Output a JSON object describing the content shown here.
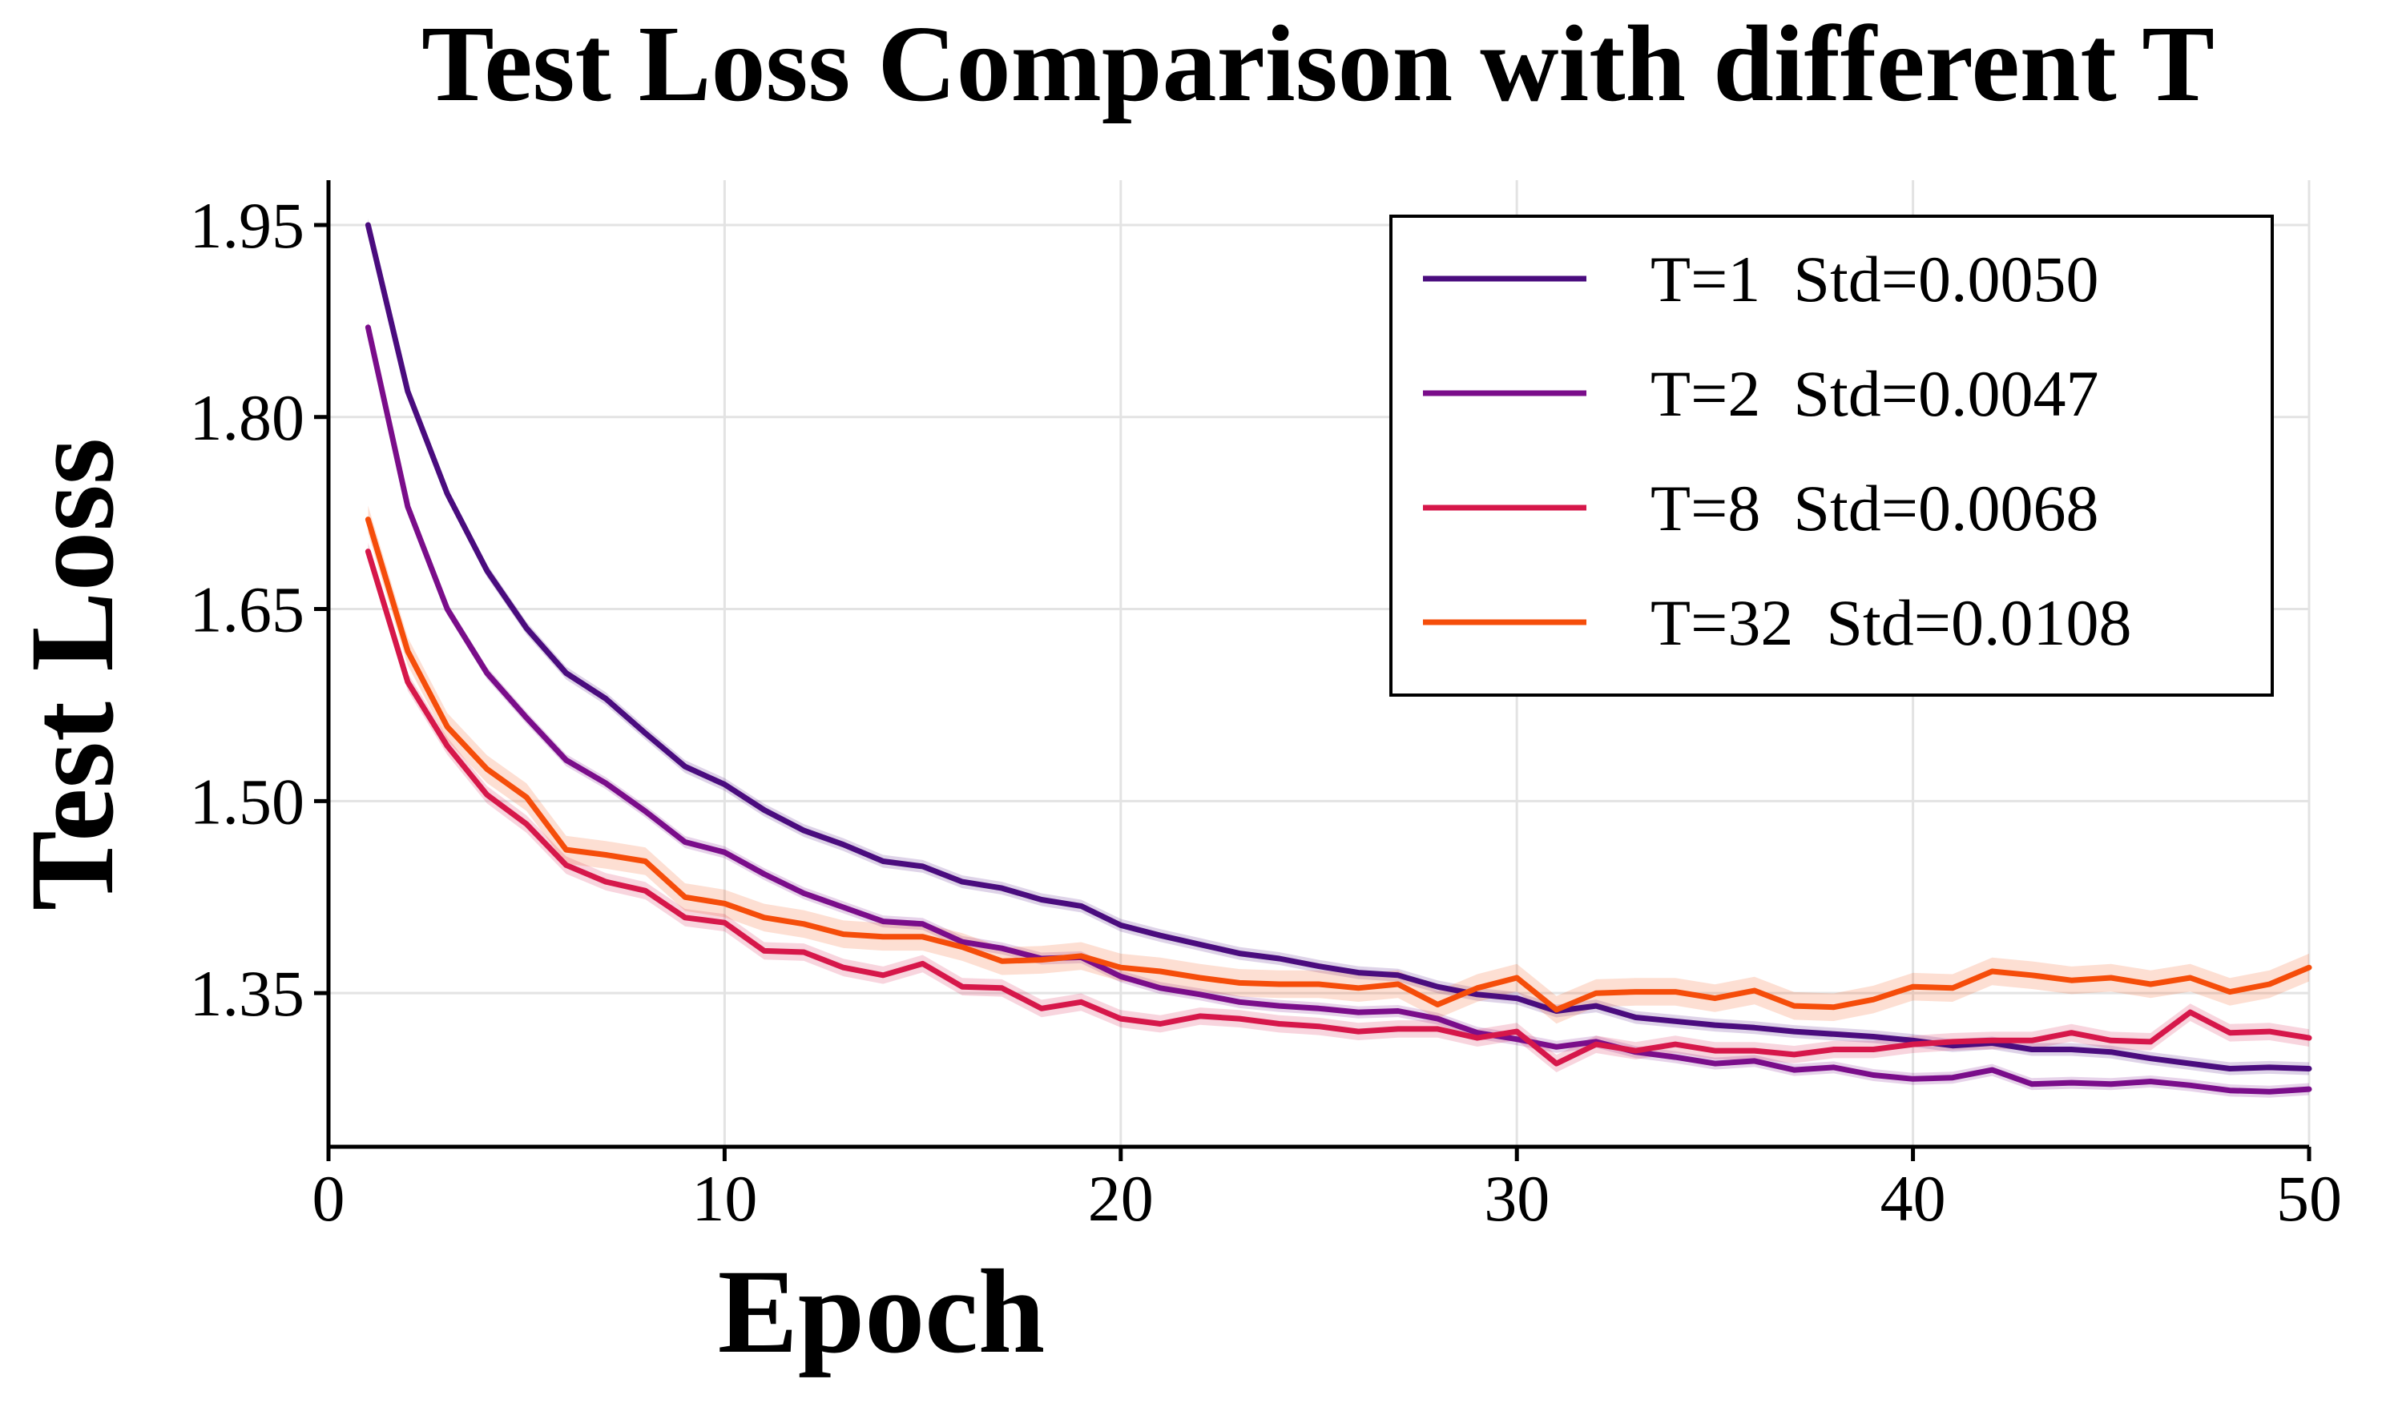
{
  "chart_data": {
    "type": "line",
    "title": "Test Loss Comparison with different T",
    "xlabel": "Epoch",
    "ylabel": "Test Loss",
    "xlim": [
      0,
      50
    ],
    "ylim": [
      1.23,
      1.985
    ],
    "xticks": [
      0,
      10,
      20,
      30,
      40,
      50
    ],
    "xtick_labels": [
      "0",
      "10",
      "20",
      "30",
      "40",
      "50"
    ],
    "yticks": [
      1.35,
      1.5,
      1.65,
      1.8,
      1.95
    ],
    "ytick_labels": [
      "1.35",
      "1.50",
      "1.65",
      "1.80",
      "1.95"
    ],
    "grid": true,
    "legend_position": "top-right",
    "x": [
      1,
      2,
      3,
      4,
      5,
      6,
      7,
      8,
      9,
      10,
      11,
      12,
      13,
      14,
      15,
      16,
      17,
      18,
      19,
      20,
      21,
      22,
      23,
      24,
      25,
      26,
      27,
      28,
      29,
      30,
      31,
      32,
      33,
      34,
      35,
      36,
      37,
      38,
      39,
      40,
      41,
      42,
      43,
      44,
      45,
      46,
      47,
      48,
      49,
      50
    ],
    "series": [
      {
        "name": "T=1  Std=0.0050",
        "color": "#4a0c7e",
        "band": 0.005,
        "values": [
          1.95,
          1.82,
          1.74,
          1.68,
          1.635,
          1.6,
          1.58,
          1.553,
          1.527,
          1.513,
          1.493,
          1.477,
          1.466,
          1.453,
          1.449,
          1.437,
          1.432,
          1.423,
          1.418,
          1.403,
          1.395,
          1.388,
          1.381,
          1.377,
          1.371,
          1.366,
          1.364,
          1.355,
          1.349,
          1.346,
          1.336,
          1.34,
          1.331,
          1.328,
          1.325,
          1.323,
          1.32,
          1.318,
          1.316,
          1.313,
          1.309,
          1.311,
          1.306,
          1.306,
          1.304,
          1.299,
          1.295,
          1.291,
          1.292,
          1.291
        ]
      },
      {
        "name": "T=2  Std=0.0047",
        "color": "#7a0d8a",
        "band": 0.0047,
        "values": [
          1.87,
          1.73,
          1.65,
          1.6,
          1.565,
          1.532,
          1.514,
          1.492,
          1.468,
          1.46,
          1.443,
          1.428,
          1.417,
          1.406,
          1.404,
          1.39,
          1.385,
          1.377,
          1.378,
          1.363,
          1.354,
          1.349,
          1.343,
          1.34,
          1.338,
          1.335,
          1.336,
          1.33,
          1.319,
          1.314,
          1.308,
          1.312,
          1.304,
          1.3,
          1.295,
          1.297,
          1.29,
          1.292,
          1.286,
          1.283,
          1.284,
          1.29,
          1.279,
          1.28,
          1.279,
          1.281,
          1.278,
          1.274,
          1.273,
          1.275
        ]
      },
      {
        "name": "T=8  Std=0.0068",
        "color": "#d6174a",
        "band": 0.0068,
        "values": [
          1.695,
          1.593,
          1.543,
          1.505,
          1.482,
          1.45,
          1.437,
          1.43,
          1.409,
          1.405,
          1.383,
          1.382,
          1.37,
          1.364,
          1.373,
          1.355,
          1.354,
          1.338,
          1.343,
          1.33,
          1.326,
          1.332,
          1.33,
          1.326,
          1.324,
          1.32,
          1.322,
          1.322,
          1.315,
          1.32,
          1.295,
          1.31,
          1.305,
          1.31,
          1.305,
          1.305,
          1.302,
          1.306,
          1.306,
          1.31,
          1.312,
          1.313,
          1.313,
          1.319,
          1.313,
          1.312,
          1.335,
          1.319,
          1.32,
          1.315
        ]
      },
      {
        "name": "T=32  Std=0.0108",
        "color": "#f54d0a",
        "band": 0.0108,
        "values": [
          1.72,
          1.617,
          1.558,
          1.525,
          1.503,
          1.462,
          1.458,
          1.453,
          1.425,
          1.42,
          1.409,
          1.404,
          1.396,
          1.394,
          1.394,
          1.386,
          1.375,
          1.376,
          1.379,
          1.37,
          1.367,
          1.362,
          1.358,
          1.357,
          1.357,
          1.354,
          1.357,
          1.341,
          1.354,
          1.362,
          1.337,
          1.35,
          1.351,
          1.351,
          1.346,
          1.352,
          1.34,
          1.339,
          1.345,
          1.355,
          1.354,
          1.367,
          1.364,
          1.36,
          1.362,
          1.357,
          1.362,
          1.351,
          1.357,
          1.37
        ]
      }
    ]
  }
}
